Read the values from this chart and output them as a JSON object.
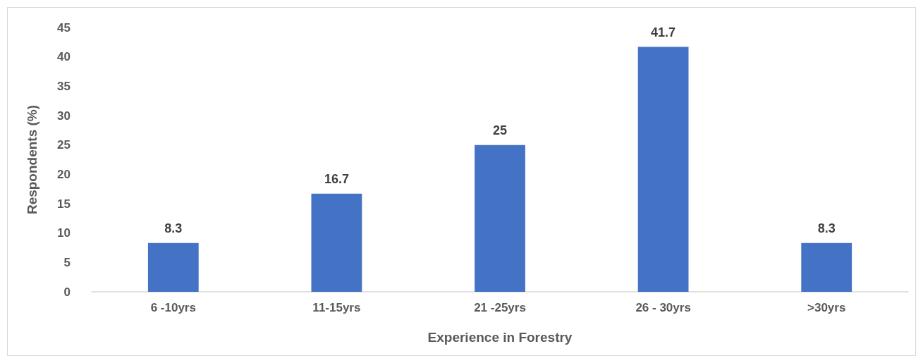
{
  "chart_data": {
    "type": "bar",
    "xlabel": "Experience in Forestry",
    "ylabel": "Respondents (%)",
    "categories": [
      "6 -10yrs",
      "11-15yrs",
      "21 -25yrs",
      "26 - 30yrs",
      ">30yrs"
    ],
    "values": [
      8.3,
      16.7,
      25,
      41.7,
      8.3
    ],
    "color": "#4472c4",
    "ylim": [
      0,
      45
    ],
    "yticks": [
      0,
      5,
      10,
      15,
      20,
      25,
      30,
      35,
      40,
      45
    ],
    "grid": false,
    "data_labels": true
  }
}
